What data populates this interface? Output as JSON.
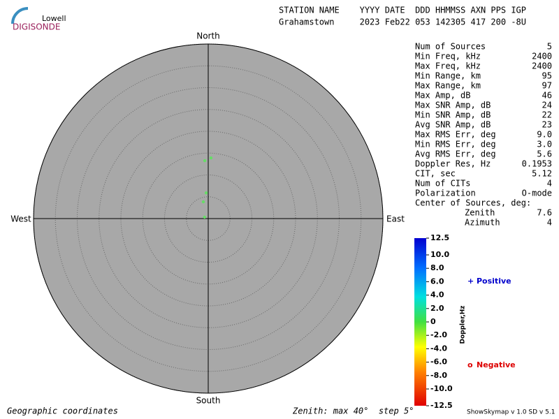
{
  "logo": {
    "top": "Lowell",
    "bottom": "DIGISONDE"
  },
  "header": {
    "columns": "STATION NAME    YYYY DATE  DDD HHMMSS AXN PPS IGP",
    "values": "Grahamstown     2023 Feb22 053 142305 417 200 -8U"
  },
  "stats": [
    [
      "Num of Sources",
      "5"
    ],
    [
      "Min Freq, kHz",
      "2400"
    ],
    [
      "Max Freq, kHz",
      "2400"
    ],
    [
      "Min Range, km",
      "95"
    ],
    [
      "Max Range, km",
      "97"
    ],
    [
      "Max Amp, dB",
      "46"
    ],
    [
      "Max SNR Amp, dB",
      "24"
    ],
    [
      "Min SNR Amp, dB",
      "22"
    ],
    [
      "Avg SNR Amp, dB",
      "23"
    ],
    [
      "Max RMS Err, deg",
      "9.0"
    ],
    [
      "Min RMS Err, deg",
      "3.0"
    ],
    [
      "Avg RMS Err, deg",
      "5.6"
    ],
    [
      "Doppler Res, Hz",
      "0.1953"
    ],
    [
      "CIT, sec",
      "5.12"
    ],
    [
      "Num of CITs",
      "4"
    ],
    [
      "Polarization",
      "O-mode"
    ]
  ],
  "center_of_sources": {
    "title": "Center of Sources, deg:",
    "rows": [
      [
        "Zenith",
        "7.6"
      ],
      [
        "Azimuth",
        "4"
      ]
    ]
  },
  "footer": {
    "left": "Geographic coordinates",
    "center": "Zenith: max 40°  step 5°",
    "right": "ShowSkymap v 1.0   SD v 5.1"
  },
  "chart_data": {
    "type": "skymap",
    "directions": {
      "north": "North",
      "south": "South",
      "east": "East",
      "west": "West"
    },
    "rlim": [
      0,
      40
    ],
    "rticks": [
      5,
      10,
      15,
      20,
      25,
      30,
      35,
      40
    ],
    "series": [
      {
        "color": "#66dd66",
        "zenith": [
          13.3,
          13.9,
          5.9,
          4.0,
          0.9
        ],
        "azimuth": [
          356.6,
          2.6,
          355.4,
          343.7,
          292
        ]
      }
    ],
    "colorbar": {
      "title": "Doppler,Hz",
      "clim": [
        -12.5,
        12.5
      ],
      "cticks": [
        12.5,
        {
          "value": 10,
          "label": "10.0"
        },
        {
          "value": 8,
          "label": "8.0"
        },
        {
          "value": 6,
          "label": "6.0"
        },
        {
          "value": 4,
          "label": "4.0"
        },
        {
          "value": 2,
          "label": "2.0"
        },
        0,
        {
          "value": -2,
          "label": "-2.0"
        },
        {
          "value": -4,
          "label": "-4.0"
        },
        {
          "value": -6,
          "label": "-6.0"
        },
        {
          "value": -8,
          "label": "-8.0"
        },
        {
          "value": -10,
          "label": "-10.0"
        },
        -12.5
      ]
    },
    "legend": [
      {
        "symbol": "+",
        "label": "Positive",
        "color": "#0000cc"
      },
      {
        "symbol": "o",
        "label": "Negative",
        "color": "#dd0000"
      }
    ]
  }
}
